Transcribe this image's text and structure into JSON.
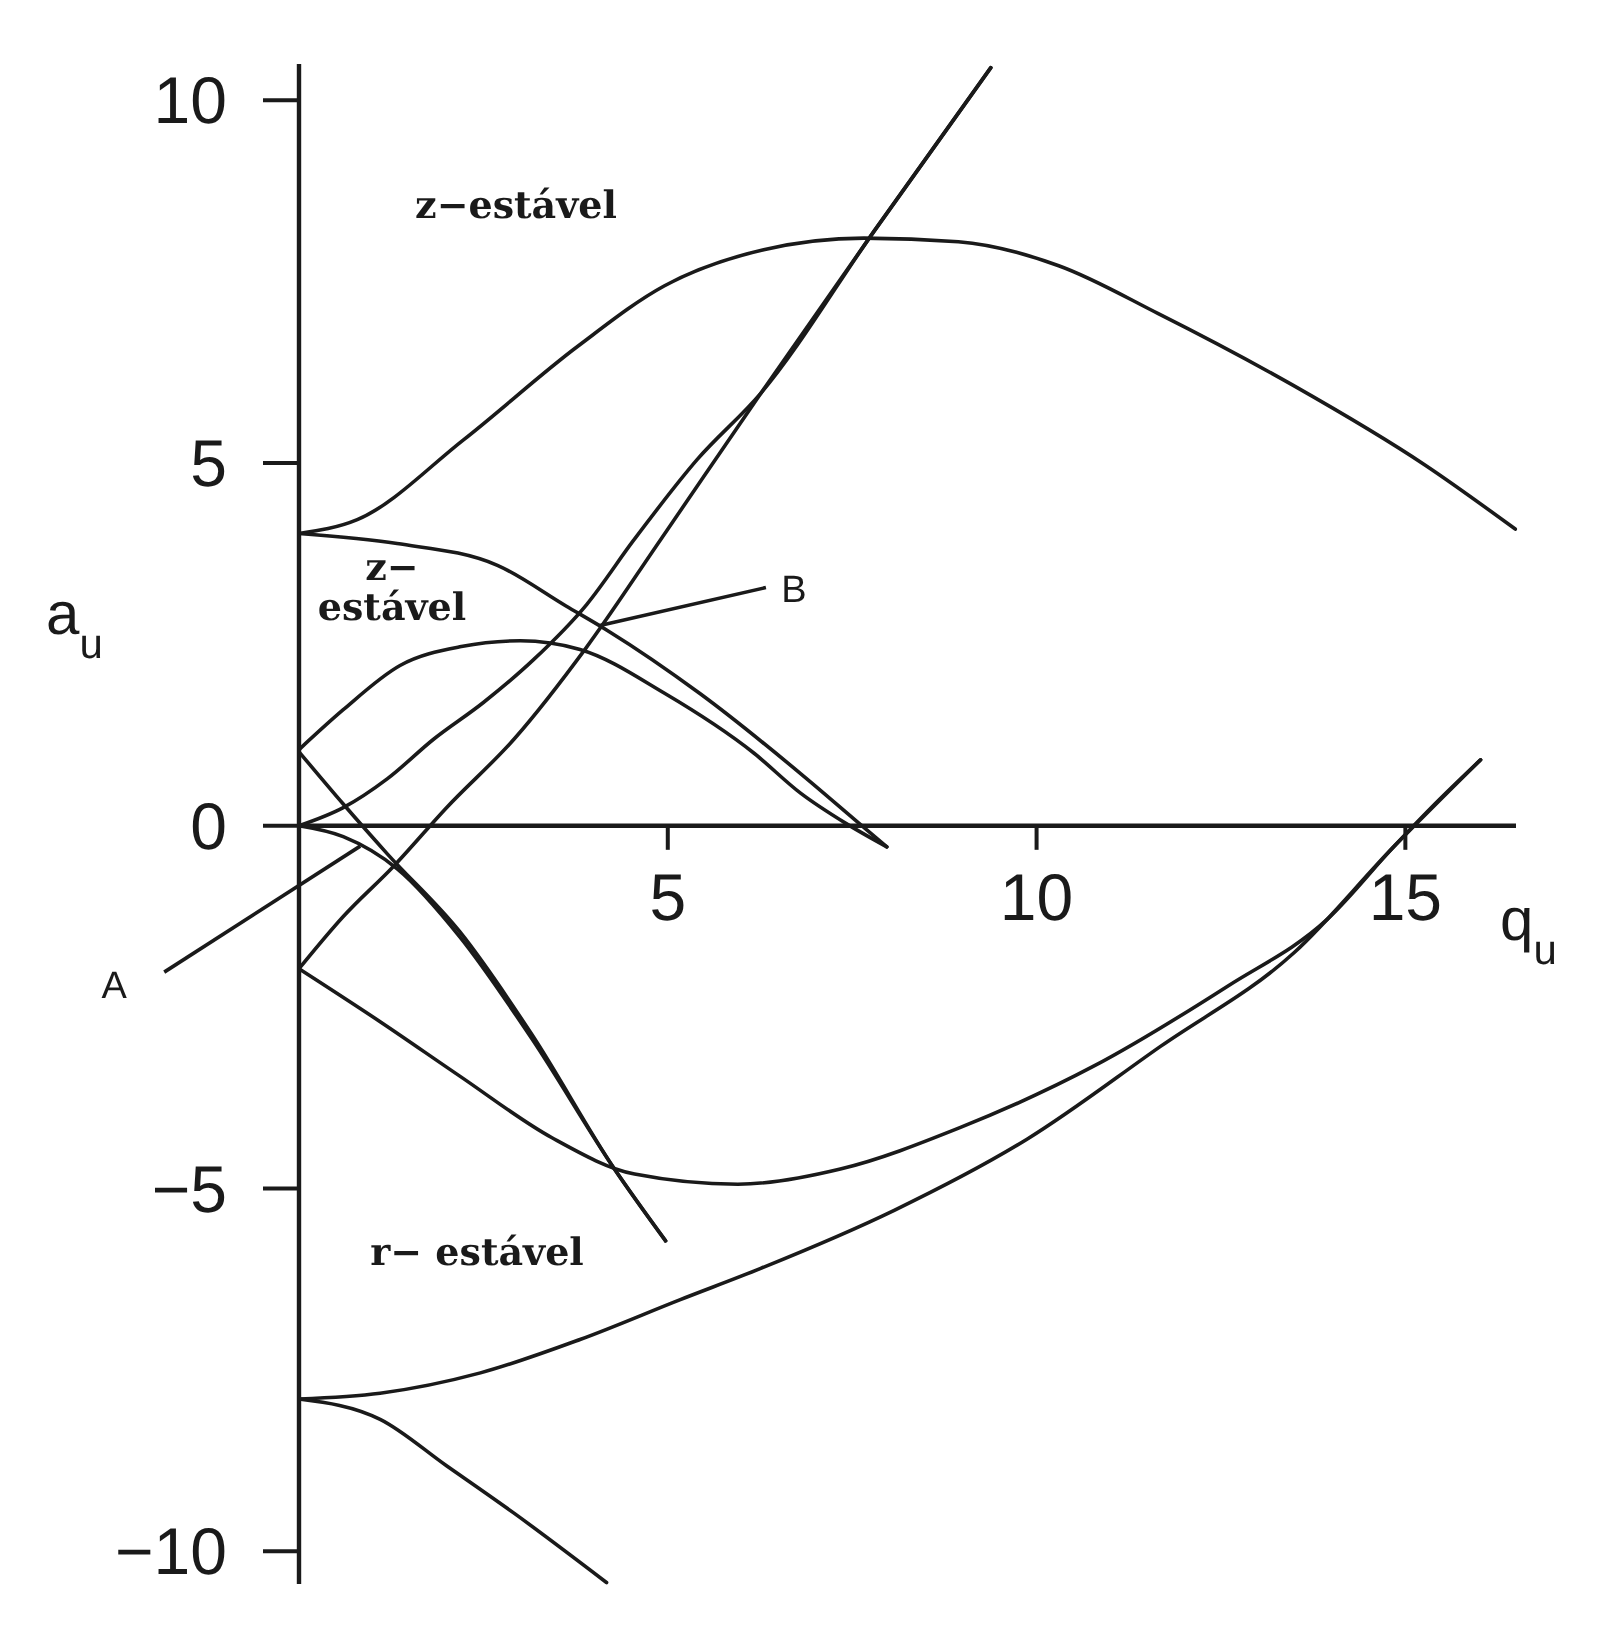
{
  "chart_data": {
    "type": "line",
    "xlabel": "q$_{u}$",
    "ylabel": "a$_{u}$",
    "xlim": [
      0,
      16.5
    ],
    "ylim": [
      -10.45,
      10.5
    ],
    "xticks": [
      5,
      10,
      15
    ],
    "yticks": [
      -10,
      -5,
      0,
      5,
      10
    ],
    "annotations": [
      "z−estável",
      "z−\nestável",
      "r− estável",
      {
        "text": "A",
        "x": 0.83,
        "y": -0.28
      },
      {
        "text": "B",
        "x": 4.08,
        "y": 2.76
      }
    ],
    "series": [
      {
        "color": "#1a1a1a",
        "x": [
          0,
          0.79,
          2.23,
          3.78,
          4.95,
          6.3,
          7.66,
          8.94,
          10.3,
          11.65,
          13.48,
          15.27,
          16.49
        ],
        "values": [
          4.03,
          4.22,
          5.32,
          6.61,
          7.44,
          7.94,
          8.1,
          8.05,
          7.72,
          7.06,
          6.07,
          4.97,
          4.09
        ]
      },
      {
        "color": "#1a1a1a",
        "x": [
          0,
          1.33,
          2.69,
          3.62,
          4.17,
          5.44,
          6.8,
          7.53,
          7.97
        ],
        "values": [
          4.03,
          3.89,
          3.59,
          3.03,
          2.7,
          1.82,
          0.72,
          0.09,
          -0.29
        ]
      },
      {
        "color": "#1a1a1a",
        "x": [
          0,
          0.6,
          1.37,
          2.2,
          3.0,
          3.81,
          4.95,
          6.17,
          6.8,
          7.42,
          7.97
        ],
        "values": [
          1.05,
          1.6,
          2.21,
          2.47,
          2.55,
          2.43,
          1.83,
          1.0,
          0.45,
          0.03,
          -0.29
        ]
      },
      {
        "color": "#1a1a1a",
        "x": [
          0,
          0.6,
          1.2,
          2.18,
          3.16,
          4.27,
          4.97
        ],
        "values": [
          1.02,
          0.3,
          -0.39,
          -1.46,
          -2.88,
          -4.72,
          -5.72
        ]
      },
      {
        "color": "#1a1a1a",
        "x": [
          0,
          0.6,
          1.34,
          2.18,
          3.16,
          4.27,
          4.97
        ],
        "values": [
          0,
          -0.15,
          -0.6,
          -1.53,
          -2.94,
          -4.72,
          -5.72
        ]
      },
      {
        "color": "#1a1a1a",
        "x": [
          0,
          0.6,
          1.2,
          1.82,
          2.5,
          3.18,
          3.9,
          4.54,
          5.4,
          6.26,
          7.8,
          9.38
        ],
        "values": [
          0,
          0.25,
          0.65,
          1.19,
          1.7,
          2.29,
          3.05,
          3.94,
          5.05,
          5.96,
          8.2,
          10.45
        ]
      },
      {
        "color": "#1a1a1a",
        "x": [
          0,
          0.6,
          1.28,
          2.0,
          2.92,
          3.89,
          4.9,
          6.26,
          7.8,
          9.38
        ],
        "values": [
          -1.97,
          -1.25,
          -0.56,
          0.25,
          1.2,
          2.45,
          3.94,
          5.96,
          8.2,
          10.45
        ]
      },
      {
        "color": "#1a1a1a",
        "x": [
          0,
          1.1,
          2.18,
          3.43,
          4.55,
          5.95,
          7.34,
          8.96,
          10.78,
          12.59,
          13.94,
          14.85,
          15.4,
          16.02
        ],
        "values": [
          -1.97,
          -2.7,
          -3.45,
          -4.3,
          -4.8,
          -4.94,
          -4.73,
          -4.16,
          -3.31,
          -2.21,
          -1.29,
          -0.28,
          0.3,
          0.91
        ]
      },
      {
        "color": "#1a1a1a",
        "x": [
          0,
          1.1,
          2.46,
          3.81,
          5.17,
          6.26,
          8.07,
          9.87,
          11.68,
          13.49,
          14.85,
          16.02
        ],
        "values": [
          -7.9,
          -7.82,
          -7.54,
          -7.08,
          -6.53,
          -6.1,
          -5.3,
          -4.32,
          -3.04,
          -1.75,
          -0.28,
          0.91
        ]
      },
      {
        "color": "#1a1a1a",
        "x": [
          0,
          1.1,
          2.0,
          2.91,
          4.17
        ],
        "values": [
          -7.9,
          -8.18,
          -8.82,
          -9.47,
          -10.43
        ]
      }
    ]
  }
}
